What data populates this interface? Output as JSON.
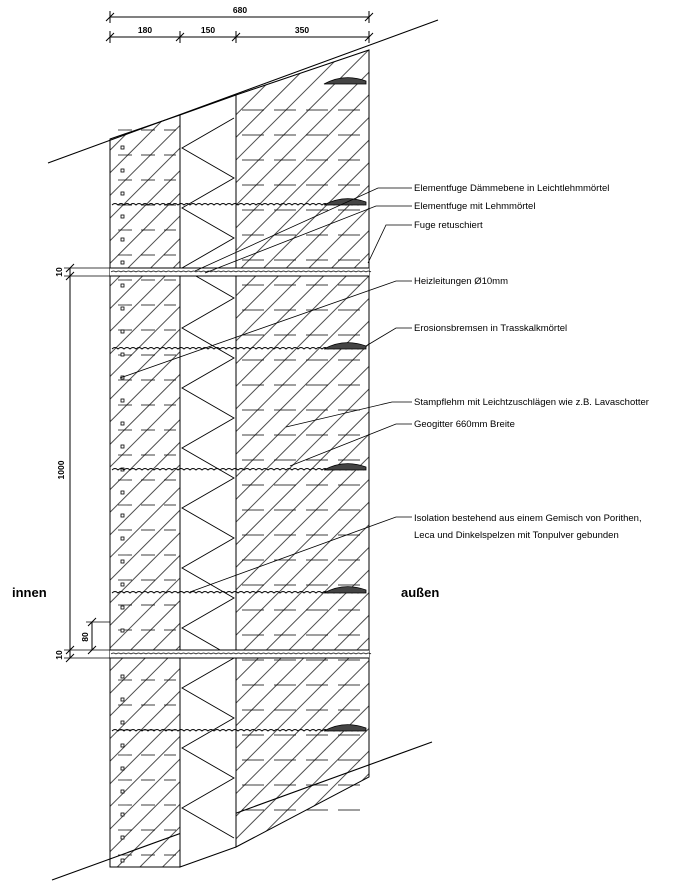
{
  "dimensions": {
    "overall": "680",
    "inner_layer": "180",
    "insulation_layer": "150",
    "outer_layer": "350",
    "element_height": "1000",
    "joint_top": "10",
    "joint_bottom": "10",
    "small": "80"
  },
  "sides": {
    "inside": "innen",
    "outside": "außen"
  },
  "labels": [
    "Elementfuge Dämmebene in Leichtlehmmörtel",
    "Elementfuge mit Lehmmörtel",
    "Fuge retuschiert",
    "Heizleitungen Ø10mm",
    "Erosionsbremsen in Trasskalkmörtel",
    "Stampflehm mit Leichtzuschlägen wie z.B. Lavaschotter",
    "Geogitter 660mm Breite",
    "Isolation bestehend aus einem Gemisch von Porithen,",
    "Leca und Dinkelspelzen mit Tonpulver gebunden"
  ]
}
